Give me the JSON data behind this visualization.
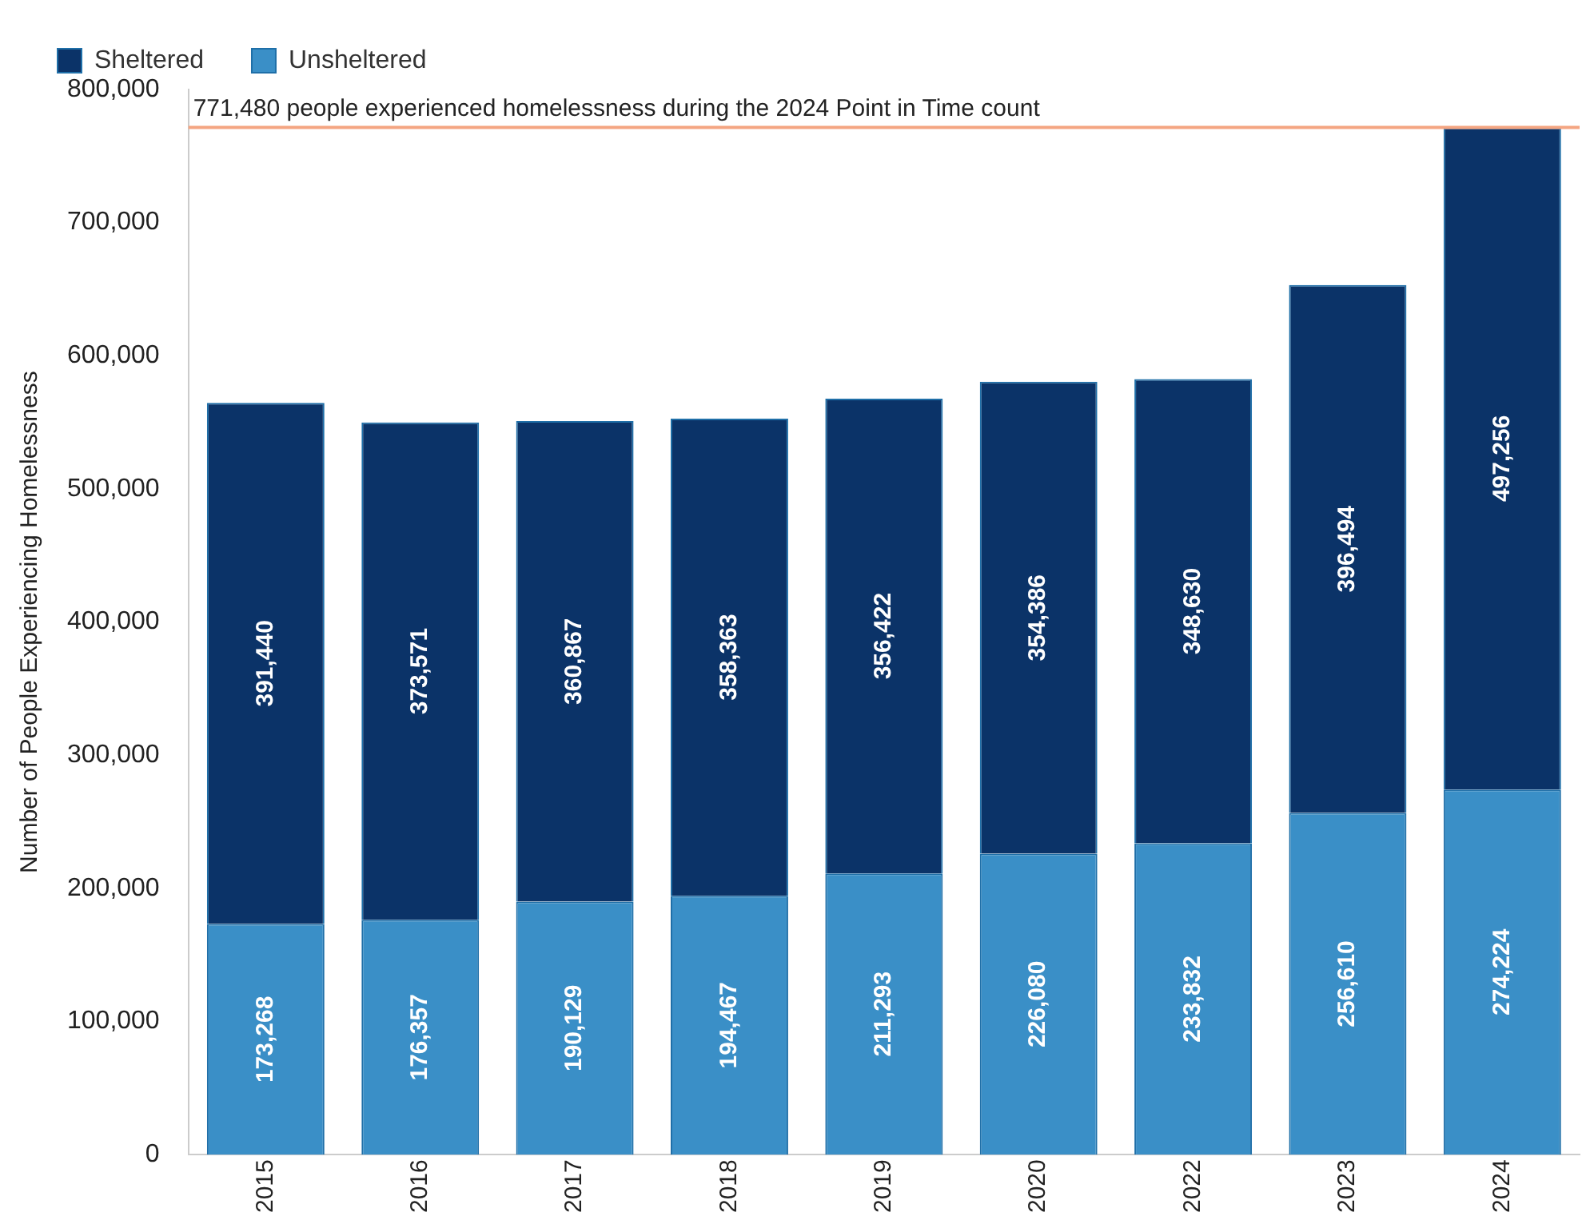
{
  "chart_data": {
    "type": "bar",
    "stacked": true,
    "ylabel": "Number of People Experiencing Homelessness",
    "categories": [
      "2015",
      "2016",
      "2017",
      "2018",
      "2019",
      "2020",
      "2022",
      "2023",
      "2024"
    ],
    "series": [
      {
        "name": "Unsheltered",
        "color": "#3a8fc7",
        "values": [
          173268,
          176357,
          190129,
          194467,
          211293,
          226080,
          233832,
          256610,
          274224
        ],
        "value_labels": [
          "173,268",
          "176,357",
          "190,129",
          "194,467",
          "211,293",
          "226,080",
          "233,832",
          "256,610",
          "274,224"
        ]
      },
      {
        "name": "Sheltered",
        "color": "#0b3368",
        "values": [
          391440,
          373571,
          360867,
          358363,
          356422,
          354386,
          348630,
          396494,
          497256
        ],
        "value_labels": [
          "391,440",
          "373,571",
          "360,867",
          "358,363",
          "356,422",
          "354,386",
          "348,630",
          "396,494",
          "497,256"
        ]
      }
    ],
    "ylim": [
      0,
      800000
    ],
    "yticks": [
      0,
      {
        "value": 100000,
        "label": "100,000"
      },
      {
        "value": 200000,
        "label": "200,000"
      },
      {
        "value": 300000,
        "label": "300,000"
      },
      {
        "value": 400000,
        "label": "400,000"
      },
      {
        "value": 500000,
        "label": "500,000"
      },
      {
        "value": 600000,
        "label": "600,000"
      },
      {
        "value": 700000,
        "label": "700,000"
      },
      {
        "value": 800000,
        "label": "800,000"
      }
    ],
    "grid": false,
    "legend": "top left",
    "ref_lines": [
      {
        "axis": "y",
        "value": 771480,
        "label": "771,480 people experienced homelessness during the 2024 Point in Time count",
        "color": "#f4a582"
      }
    ]
  }
}
